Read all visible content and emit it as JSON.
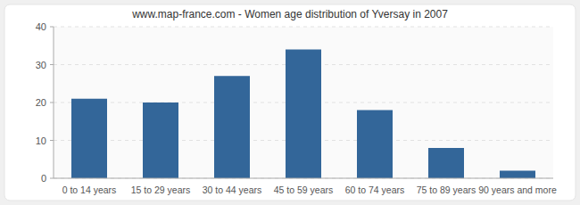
{
  "chart_data": {
    "type": "bar",
    "title": "www.map-france.com - Women age distribution of Yversay in 2007",
    "categories": [
      "0 to 14 years",
      "15 to 29 years",
      "30 to 44 years",
      "45 to 59 years",
      "60 to 74 years",
      "75 to 89 years",
      "90 years and more"
    ],
    "values": [
      21,
      20,
      27,
      34,
      18,
      8,
      2
    ],
    "color": "#336699",
    "ylim": [
      0,
      40
    ],
    "yticks": [
      0,
      10,
      20,
      30,
      40
    ],
    "grid": true
  }
}
